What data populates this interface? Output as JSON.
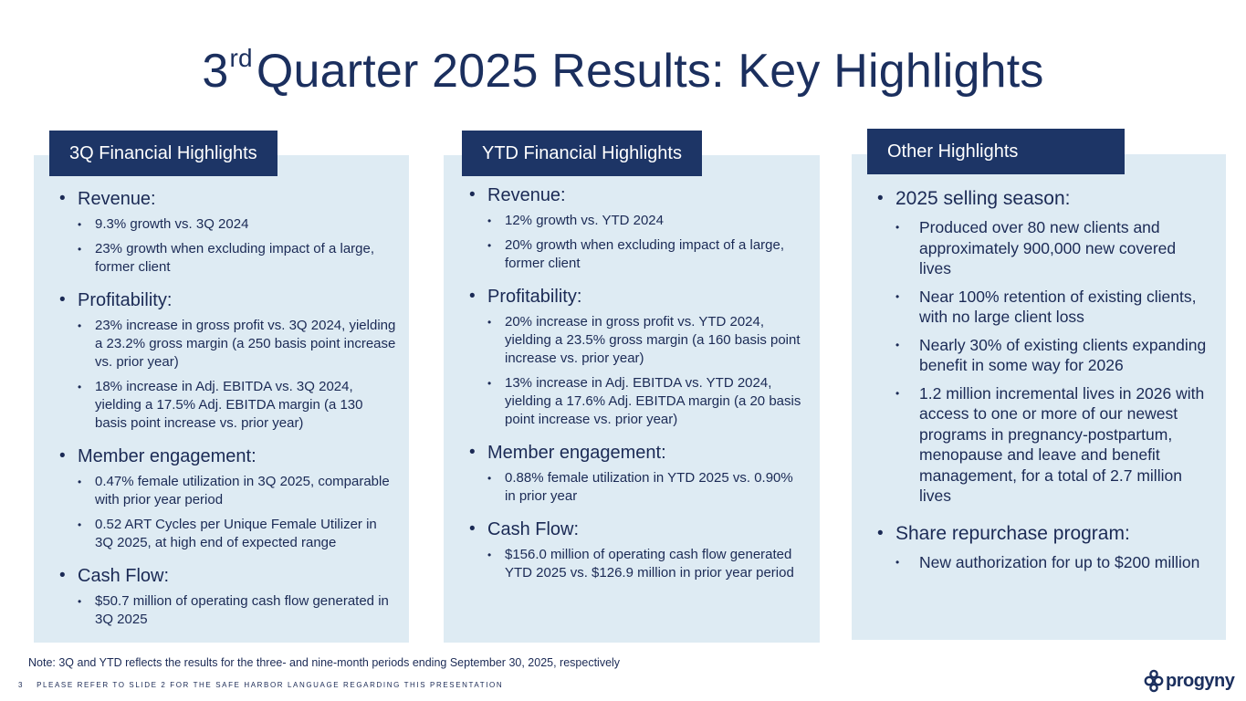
{
  "title": {
    "prefix": "3",
    "sup": "rd",
    "rest": "Quarter 2025 Results: Key Highlights"
  },
  "panels": [
    {
      "heading": "3Q Financial Highlights",
      "sections": [
        {
          "label": "Revenue:",
          "items": [
            "9.3% growth vs. 3Q 2024",
            "23% growth when excluding impact of a large, former client"
          ]
        },
        {
          "label": "Profitability:",
          "items": [
            "23% increase in gross profit vs. 3Q 2024, yielding a 23.2% gross margin (a 250 basis point increase vs. prior year)",
            "18% increase in Adj. EBITDA vs. 3Q 2024, yielding a 17.5% Adj. EBITDA margin (a 130 basis point increase vs. prior year)"
          ]
        },
        {
          "label": "Member engagement:",
          "items": [
            "0.47% female utilization in 3Q 2025, comparable with prior year period",
            "0.52 ART Cycles per Unique Female Utilizer in 3Q 2025, at high end of expected range"
          ]
        },
        {
          "label": "Cash Flow:",
          "items": [
            "$50.7 million of operating cash flow generated in 3Q 2025"
          ]
        }
      ]
    },
    {
      "heading": "YTD Financial Highlights",
      "sections": [
        {
          "label": "Revenue:",
          "items": [
            "12% growth vs. YTD 2024",
            "20% growth when excluding impact of a large, former client"
          ]
        },
        {
          "label": "Profitability:",
          "items": [
            "20% increase in gross profit vs. YTD 2024, yielding a 23.5% gross margin (a 160 basis point increase vs. prior year)",
            "13% increase in Adj. EBITDA vs. YTD 2024, yielding a 17.6% Adj. EBITDA margin (a 20 basis point increase vs. prior year)"
          ]
        },
        {
          "label": "Member engagement:",
          "items": [
            "0.88% female utilization in YTD 2025 vs. 0.90% in prior year"
          ]
        },
        {
          "label": "Cash Flow:",
          "items": [
            "$156.0 million of operating cash flow generated YTD 2025 vs. $126.9 million in prior year period"
          ]
        }
      ]
    },
    {
      "heading": "Other Highlights",
      "sections": [
        {
          "label": "2025 selling season:",
          "items": [
            "Produced over 80 new clients and approximately 900,000 new covered lives",
            "Near 100% retention of existing clients, with no large client loss",
            "Nearly 30% of existing clients expanding benefit in some way for 2026",
            "1.2 million incremental lives in 2026 with access to one or more of our newest programs in pregnancy-postpartum, menopause and leave and benefit management, for a total of 2.7 million lives"
          ]
        },
        {
          "label": "Share repurchase program:",
          "items": [
            "New authorization for up to $200 million"
          ]
        }
      ]
    }
  ],
  "note": "Note: 3Q and YTD reflects the results for the three- and nine-month periods ending September 30, 2025, respectively",
  "footer": {
    "page_number": "3",
    "text": "PLEASE REFER TO SLIDE 2 FOR THE SAFE HARBOR LANGUAGE REGARDING THIS PRESENTATION"
  },
  "logo": {
    "text": "progyny"
  }
}
